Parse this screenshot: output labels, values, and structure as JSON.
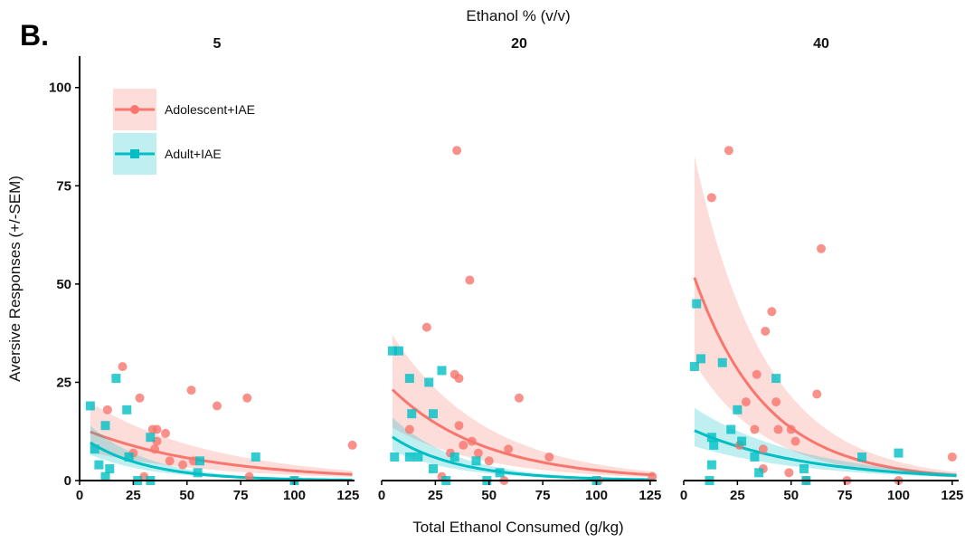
{
  "panel_label": "B.",
  "chart_data": {
    "type": "scatter",
    "title": "Ethanol % (v/v)",
    "xlabel": "Total Ethanol Consumed (g/kg)",
    "ylabel": "Aversive Responses (+/-SEM)",
    "xlim": [
      0,
      128
    ],
    "ylim": [
      0,
      108
    ],
    "xticks": [
      0,
      25,
      50,
      75,
      100,
      125
    ],
    "yticks": [
      0,
      25,
      50,
      75,
      100
    ],
    "legend_position": "top-left",
    "grid": false,
    "facets": [
      "5",
      "20",
      "40"
    ],
    "series": [
      {
        "name": "Adolescent+IAE",
        "color": "#F8766D",
        "marker": "circle"
      },
      {
        "name": "Adult+IAE",
        "color": "#00BFC4",
        "marker": "square"
      }
    ],
    "panels": [
      {
        "facet": "5",
        "points": [
          {
            "x": 20,
            "y": 29
          },
          {
            "x": 28,
            "y": 21
          },
          {
            "x": 13,
            "y": 18
          },
          {
            "x": 34,
            "y": 13
          },
          {
            "x": 36,
            "y": 13
          },
          {
            "x": 40,
            "y": 12
          },
          {
            "x": 35,
            "y": 8
          },
          {
            "x": 36,
            "y": 10
          },
          {
            "x": 42,
            "y": 5
          },
          {
            "x": 48,
            "y": 4
          },
          {
            "x": 53,
            "y": 5
          },
          {
            "x": 52,
            "y": 23
          },
          {
            "x": 64,
            "y": 19
          },
          {
            "x": 78,
            "y": 21
          },
          {
            "x": 79,
            "y": 1
          },
          {
            "x": 127,
            "y": 9
          },
          {
            "x": 100,
            "y": 0
          },
          {
            "x": 25,
            "y": 7
          },
          {
            "x": 30,
            "y": 1
          }
        ],
        "points2": [
          {
            "x": 5,
            "y": 19
          },
          {
            "x": 7,
            "y": 8
          },
          {
            "x": 9,
            "y": 4
          },
          {
            "x": 12,
            "y": 14
          },
          {
            "x": 17,
            "y": 26
          },
          {
            "x": 22,
            "y": 18
          },
          {
            "x": 14,
            "y": 3
          },
          {
            "x": 12,
            "y": 1
          },
          {
            "x": 23,
            "y": 6
          },
          {
            "x": 27,
            "y": 0
          },
          {
            "x": 33,
            "y": 11
          },
          {
            "x": 55,
            "y": 2
          },
          {
            "x": 82,
            "y": 6
          },
          {
            "x": 56,
            "y": 5
          },
          {
            "x": 100,
            "y": 0
          },
          {
            "x": 33,
            "y": 0
          }
        ],
        "fit1": {
          "a": 13.5,
          "b": 0.017
        },
        "fit2": {
          "a": 11.5,
          "b": 0.035
        }
      },
      {
        "facet": "20",
        "points": [
          {
            "x": 35,
            "y": 84
          },
          {
            "x": 41,
            "y": 51
          },
          {
            "x": 21,
            "y": 39
          },
          {
            "x": 34,
            "y": 27
          },
          {
            "x": 36,
            "y": 26
          },
          {
            "x": 64,
            "y": 21
          },
          {
            "x": 36,
            "y": 14
          },
          {
            "x": 38,
            "y": 9
          },
          {
            "x": 42,
            "y": 10
          },
          {
            "x": 45,
            "y": 7
          },
          {
            "x": 50,
            "y": 5
          },
          {
            "x": 32,
            "y": 7
          },
          {
            "x": 59,
            "y": 8
          },
          {
            "x": 78,
            "y": 6
          },
          {
            "x": 13,
            "y": 13
          },
          {
            "x": 28,
            "y": 1
          },
          {
            "x": 126,
            "y": 1
          },
          {
            "x": 101,
            "y": 0
          },
          {
            "x": 57,
            "y": 0
          }
        ],
        "points2": [
          {
            "x": 5,
            "y": 33
          },
          {
            "x": 8,
            "y": 33
          },
          {
            "x": 13,
            "y": 26
          },
          {
            "x": 22,
            "y": 25
          },
          {
            "x": 28,
            "y": 28
          },
          {
            "x": 24,
            "y": 17
          },
          {
            "x": 14,
            "y": 17
          },
          {
            "x": 6,
            "y": 6
          },
          {
            "x": 13,
            "y": 6
          },
          {
            "x": 17,
            "y": 6
          },
          {
            "x": 24,
            "y": 3
          },
          {
            "x": 34,
            "y": 6
          },
          {
            "x": 44,
            "y": 5
          },
          {
            "x": 49,
            "y": 0
          },
          {
            "x": 55,
            "y": 2
          },
          {
            "x": 100,
            "y": 0
          },
          {
            "x": 30,
            "y": 0
          }
        ],
        "fit1": {
          "a": 26,
          "b": 0.023
        },
        "fit2": {
          "a": 13,
          "b": 0.032
        }
      },
      {
        "facet": "40",
        "points": [
          {
            "x": 21,
            "y": 84
          },
          {
            "x": 13,
            "y": 72
          },
          {
            "x": 64,
            "y": 59
          },
          {
            "x": 41,
            "y": 43
          },
          {
            "x": 38,
            "y": 38
          },
          {
            "x": 34,
            "y": 27
          },
          {
            "x": 62,
            "y": 22
          },
          {
            "x": 29,
            "y": 20
          },
          {
            "x": 43,
            "y": 20
          },
          {
            "x": 33,
            "y": 13
          },
          {
            "x": 44,
            "y": 13
          },
          {
            "x": 50,
            "y": 13
          },
          {
            "x": 52,
            "y": 10
          },
          {
            "x": 37,
            "y": 8
          },
          {
            "x": 26,
            "y": 9
          },
          {
            "x": 37,
            "y": 3
          },
          {
            "x": 49,
            "y": 2
          },
          {
            "x": 57,
            "y": 0
          },
          {
            "x": 125,
            "y": 6
          },
          {
            "x": 100,
            "y": 0
          },
          {
            "x": 76,
            "y": 0
          }
        ],
        "points2": [
          {
            "x": 6,
            "y": 45
          },
          {
            "x": 8,
            "y": 31
          },
          {
            "x": 5,
            "y": 29
          },
          {
            "x": 18,
            "y": 30
          },
          {
            "x": 43,
            "y": 26
          },
          {
            "x": 25,
            "y": 18
          },
          {
            "x": 22,
            "y": 13
          },
          {
            "x": 13,
            "y": 11
          },
          {
            "x": 27,
            "y": 10
          },
          {
            "x": 14,
            "y": 9
          },
          {
            "x": 33,
            "y": 6
          },
          {
            "x": 35,
            "y": 2
          },
          {
            "x": 13,
            "y": 4
          },
          {
            "x": 56,
            "y": 3
          },
          {
            "x": 100,
            "y": 7
          },
          {
            "x": 83,
            "y": 6
          },
          {
            "x": 12,
            "y": 0
          },
          {
            "x": 57,
            "y": 0
          }
        ],
        "fit1": {
          "a": 60,
          "b": 0.03
        },
        "fit2": {
          "a": 14,
          "b": 0.019
        }
      }
    ]
  }
}
